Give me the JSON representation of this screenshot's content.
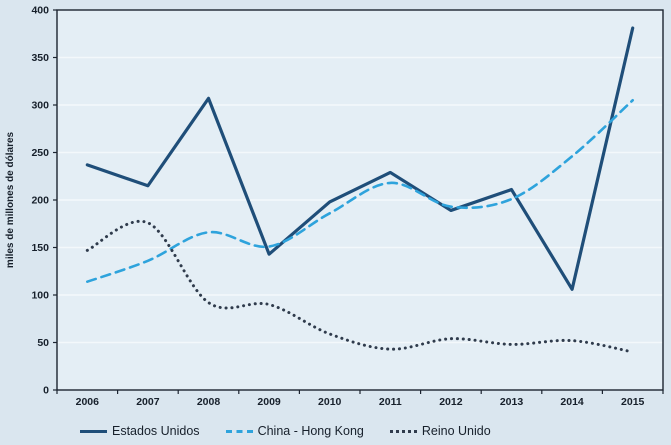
{
  "colors": {
    "page_background": "#dae6ef",
    "plot_background": "#e4eef5",
    "gridline": "#f3f8fb",
    "frame": "#1c2430",
    "tick_text": "#17202b"
  },
  "chart_data": {
    "type": "line",
    "title": "",
    "xlabel": "",
    "ylabel": "miles de millones de dólares",
    "ylim": [
      0,
      400
    ],
    "ytick_step": 50,
    "grid": true,
    "legend_position": "bottom",
    "categories": [
      "2006",
      "2007",
      "2008",
      "2009",
      "2010",
      "2011",
      "2012",
      "2013",
      "2014",
      "2015"
    ],
    "series": [
      {
        "name": "Estados Unidos",
        "color": "#1F4E79",
        "style": "solid",
        "smooth": false,
        "values": [
          237,
          215,
          307,
          143,
          198,
          229,
          189,
          211,
          106,
          381
        ]
      },
      {
        "name": "China - Hong Kong",
        "color": "#2EA3DC",
        "style": "dashed",
        "smooth": true,
        "values": [
          114,
          136,
          166,
          151,
          186,
          218,
          193,
          201,
          246,
          305
        ]
      },
      {
        "name": "Reino Unido",
        "color": "#2F3B4C",
        "style": "dotted",
        "smooth": true,
        "values": [
          147,
          176,
          92,
          90,
          59,
          43,
          54,
          48,
          52,
          40
        ]
      }
    ]
  }
}
